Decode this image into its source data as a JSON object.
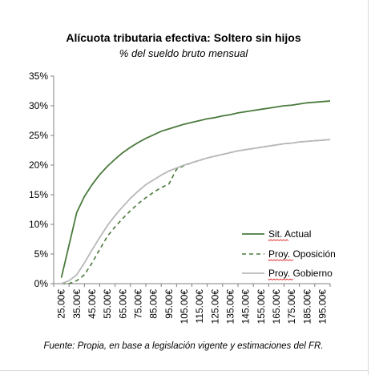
{
  "chart_data": {
    "type": "line",
    "title": "Alícuota tributaria efectiva: Soltero sin hijos",
    "subtitle": "% del sueldo bruto mensual",
    "x": [
      "25.000",
      "35.000",
      "45.000",
      "55.000",
      "65.000",
      "75.000",
      "85.000",
      "95.000",
      "105.000",
      "115.000",
      "125.000",
      "135.000",
      "145.000",
      "155.000",
      "165.000",
      "175.000",
      "185.000",
      "195.000"
    ],
    "x_tick_labels": [
      "25.00€",
      "35.00€",
      "45.00€",
      "55.00€",
      "65.00€",
      "75.00€",
      "85.00€",
      "95.00€",
      "105.00€",
      "115.00€",
      "125.00€",
      "135.00€",
      "145.00€",
      "155.00€",
      "165.00€",
      "175.00€",
      "185.00€",
      "195.00€"
    ],
    "x_values": [
      25000,
      30000,
      35000,
      40000,
      45000,
      50000,
      55000,
      60000,
      65000,
      70000,
      75000,
      80000,
      85000,
      90000,
      95000,
      100000,
      105000,
      110000,
      115000,
      120000,
      125000,
      130000,
      135000,
      140000,
      145000,
      150000,
      155000,
      160000,
      165000,
      170000,
      175000,
      180000,
      185000,
      190000,
      195000,
      200000
    ],
    "y_ticks": [
      "0%",
      "5%",
      "10%",
      "15%",
      "20%",
      "25%",
      "30%",
      "35%"
    ],
    "ylim": [
      0,
      35
    ],
    "series": [
      {
        "name": "Sit. Actual",
        "color": "#4a7a3c",
        "dash": "solid",
        "values": [
          1.0,
          6.5,
          12.0,
          14.7,
          16.7,
          18.4,
          19.8,
          21.0,
          22.1,
          23.0,
          23.8,
          24.5,
          25.1,
          25.7,
          26.1,
          26.5,
          26.9,
          27.2,
          27.5,
          27.8,
          28.0,
          28.3,
          28.5,
          28.8,
          29.0,
          29.2,
          29.4,
          29.6,
          29.8,
          30.0,
          30.1,
          30.3,
          30.5,
          30.6,
          30.7,
          30.8
        ]
      },
      {
        "name": "Proy. Oposición",
        "color": "#4a7a3c",
        "dash": "dashed",
        "values": [
          0.0,
          0.0,
          0.5,
          1.5,
          3.5,
          5.8,
          8.0,
          9.6,
          11.0,
          12.3,
          13.5,
          14.5,
          15.4,
          16.2,
          16.8,
          19.3,
          19.9,
          20.4,
          20.8,
          21.2,
          21.5,
          21.8,
          22.1,
          22.4,
          22.6,
          22.8,
          23.0,
          23.2,
          23.4,
          23.6,
          23.7,
          23.9,
          24.0,
          24.1,
          24.2,
          24.3
        ]
      },
      {
        "name": "Proy. Gobierno",
        "color": "#b8b8b8",
        "dash": "solid",
        "values": [
          0.0,
          0.5,
          1.5,
          3.5,
          5.7,
          7.8,
          9.8,
          11.5,
          13.0,
          14.4,
          15.6,
          16.7,
          17.5,
          18.3,
          19.0,
          19.5,
          20.0,
          20.4,
          20.8,
          21.2,
          21.5,
          21.8,
          22.1,
          22.4,
          22.6,
          22.8,
          23.0,
          23.2,
          23.4,
          23.6,
          23.7,
          23.9,
          24.0,
          24.1,
          24.2,
          24.3
        ]
      }
    ],
    "grid": false,
    "legend_position": "right"
  },
  "source_note": "Fuente:  Propia, en base a legislación vigente y estimaciones  del FR."
}
